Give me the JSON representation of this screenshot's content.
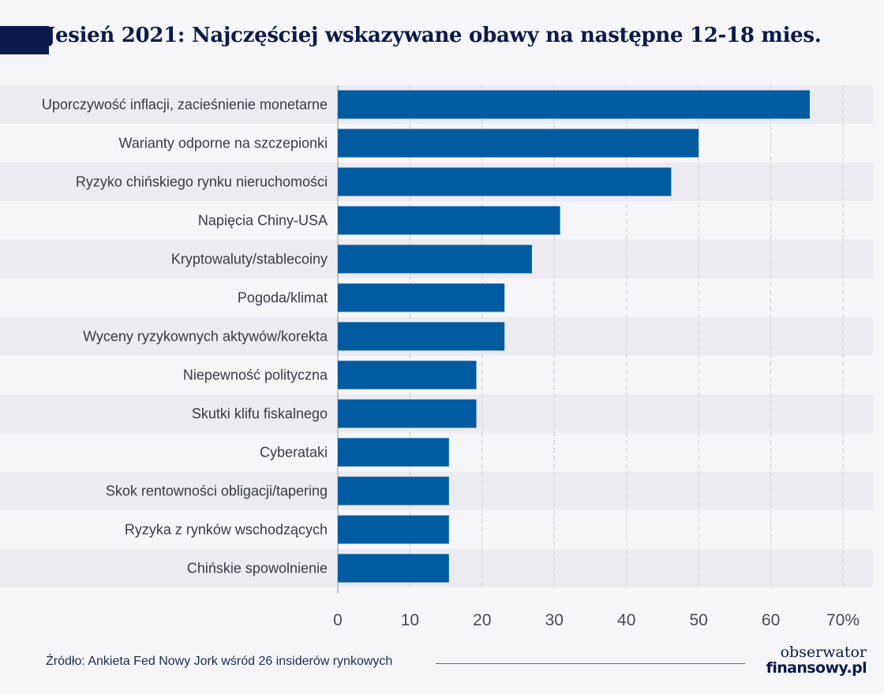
{
  "title": "Jesień 2021: Najczęściej wskazywane obawy na następne 12-18 mies.",
  "colors": {
    "bar": "#005ba1",
    "title": "#0c1a4a",
    "stripe": "#ebebf1",
    "background": "#f6f6f9",
    "grid": "#c9c9cf"
  },
  "chart_data": {
    "type": "bar",
    "orientation": "horizontal",
    "categories": [
      "Uporczywość inflacji, zacieśnienie monetarne",
      "Warianty odporne na szczepionki",
      "Ryzyko chińskiego rynku nieruchomości",
      "Napięcia Chiny-USA",
      "Kryptowaluty/stablecoiny",
      "Pogoda/klimat",
      "Wyceny ryzykownych aktywów/korekta",
      "Niepewność polityczna",
      "Skutki klifu fiskalnego",
      "Cyberataki",
      "Skok rentowności obligacji/tapering",
      "Ryzyka z rynków wschodzących",
      "Chińskie spowolnienie"
    ],
    "values": [
      65.4,
      50,
      46.2,
      30.8,
      26.9,
      23.1,
      23.1,
      19.2,
      19.2,
      15.4,
      15.4,
      15.4,
      15.4
    ],
    "xlim": [
      0,
      70
    ],
    "xticks": [
      "0",
      "10",
      "20",
      "30",
      "40",
      "50",
      "60",
      "70%"
    ],
    "xtick_values": [
      0,
      10,
      20,
      30,
      40,
      50,
      60,
      70
    ],
    "grid": "vertical dashed",
    "title": "Jesień 2021: Najczęściej wskazywane obawy na następne 12-18 mies."
  },
  "footer": {
    "source": "Źródło: Ankieta Fed Nowy Jork wśród 26 insiderów rynkowych",
    "logo_line1": "obserwator",
    "logo_line2": "finansowy.pl"
  }
}
